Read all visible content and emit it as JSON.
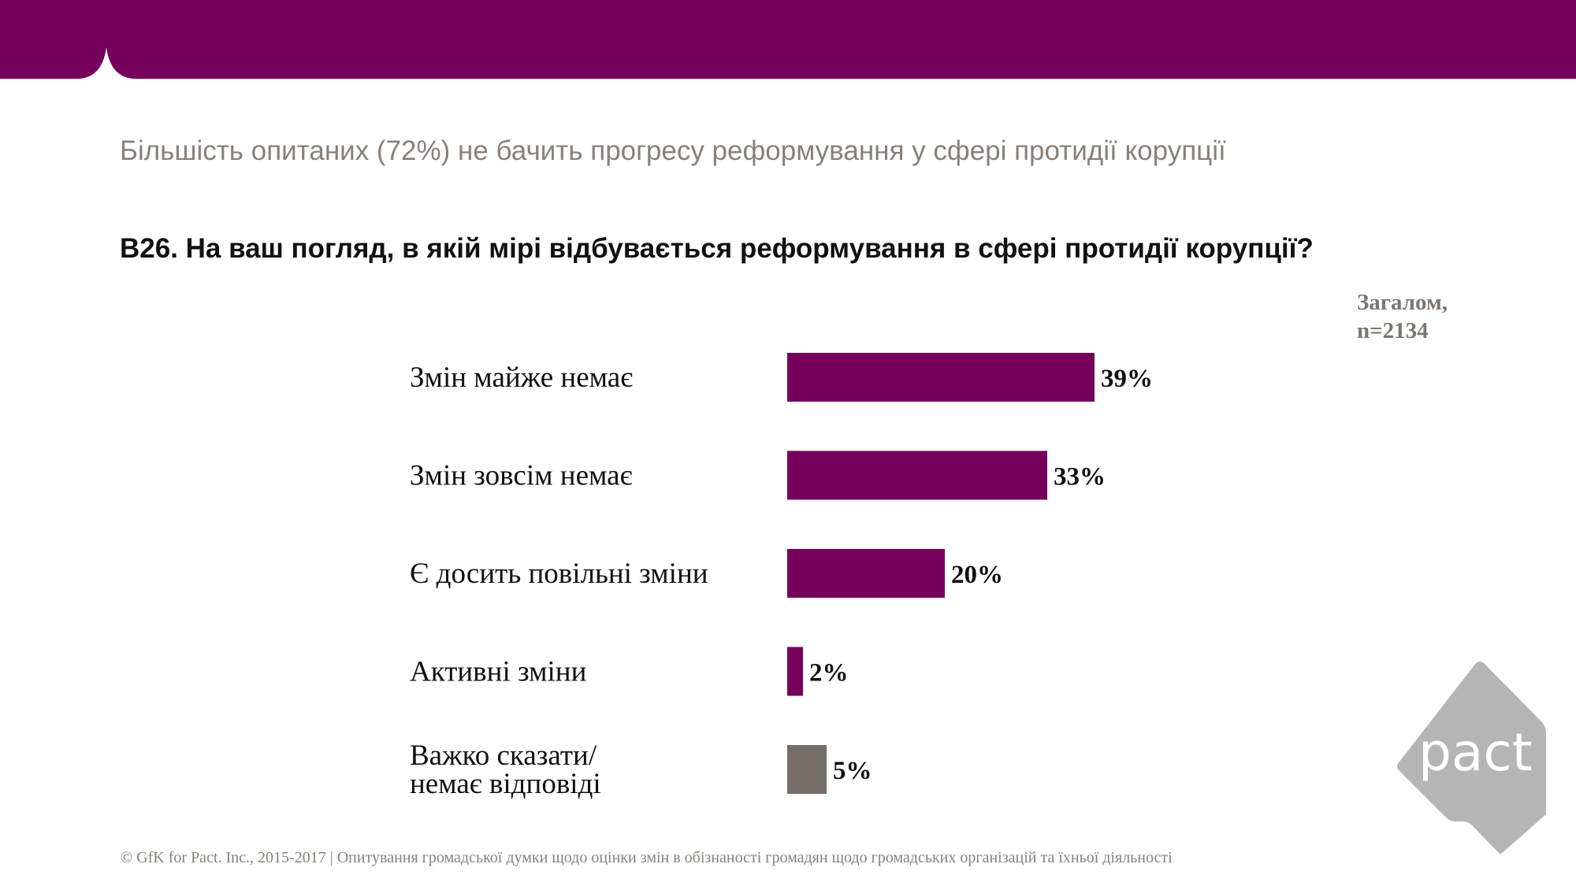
{
  "slide": {
    "subtitle": "Більшість опитаних (72%) не бачить прогресу реформування у сфері протидії корупції",
    "question": "B26. На ваш погляд, в якій мірі відбувається реформування  в сфері протидії корупції?",
    "sample_line1": "Загалом,",
    "sample_line2": "n=2134",
    "footer": "© GfK for Pact. Inc., 2015-2017 | Опитування громадської думки щодо оцінки змін в обізнаності громадян щодо громадських організацій та їхньої діяльності",
    "logo_text": "pact",
    "colors": {
      "banner": "#75005c",
      "bar": "#75005c",
      "bar_other": "#766c68",
      "logo": "#b5b5b5"
    }
  },
  "chart_data": {
    "type": "bar",
    "orientation": "horizontal",
    "categories": [
      [
        "Змін майже немає"
      ],
      [
        "Змін зовсім немає"
      ],
      [
        "Є досить повільні зміни"
      ],
      [
        "Активні зміни"
      ],
      [
        "Важко сказати/",
        "немає відповіді"
      ]
    ],
    "values": [
      39,
      33,
      20,
      2,
      5
    ],
    "value_labels": [
      "39%",
      "33%",
      "20%",
      "2%",
      "5%"
    ],
    "bar_colors": [
      "#75005c",
      "#75005c",
      "#75005c",
      "#75005c",
      "#766c68"
    ],
    "xlim": [
      0,
      100
    ],
    "grid": false,
    "legend": "none"
  }
}
